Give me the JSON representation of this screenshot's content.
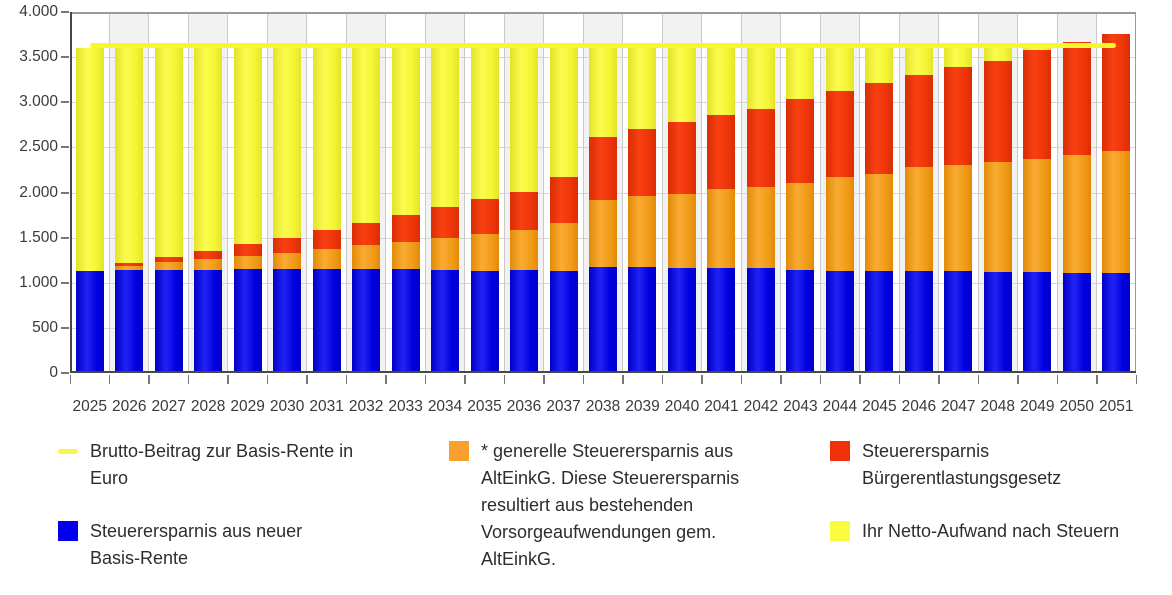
{
  "colors": {
    "blue": "#0000ee",
    "orange": "#f7a02e",
    "red": "#f03008",
    "yellow_bar": "#fbfb3f",
    "yellow_line": "#f7f74a",
    "band": "#f2f2f2",
    "grid": "#d6d6d6",
    "axis_text": "#3a3a3a"
  },
  "y_axis": {
    "tick_labels": [
      "0",
      "500",
      "1.000",
      "1.500",
      "2.000",
      "2.500",
      "3.000",
      "3.500",
      "4.000"
    ],
    "tick_values": [
      0,
      500,
      1000,
      1500,
      2000,
      2500,
      3000,
      3500,
      4000
    ]
  },
  "x_axis": {
    "categories": [
      "2025",
      "2026",
      "2027",
      "2028",
      "2029",
      "2030",
      "2031",
      "2032",
      "2033",
      "2034",
      "2035",
      "2036",
      "2037",
      "2038",
      "2039",
      "2040",
      "2041",
      "2042",
      "2043",
      "2044",
      "2045",
      "2046",
      "2047",
      "2048",
      "2049",
      "2050",
      "2051"
    ]
  },
  "chart_data": {
    "type": "bar",
    "stacked": true,
    "title": "",
    "xlabel": "",
    "ylabel": "",
    "ylim": [
      0,
      4000
    ],
    "grid": true,
    "legend_position": "bottom",
    "categories": [
      2025,
      2026,
      2027,
      2028,
      2029,
      2030,
      2031,
      2032,
      2033,
      2034,
      2035,
      2036,
      2037,
      2038,
      2039,
      2040,
      2041,
      2042,
      2043,
      2044,
      2045,
      2046,
      2047,
      2048,
      2049,
      2050,
      2051
    ],
    "series": [
      {
        "key": "blue",
        "name": "Steuerersparnis aus neuer Basis-Rente",
        "values": [
          1130,
          1140,
          1145,
          1145,
          1150,
          1155,
          1150,
          1150,
          1150,
          1140,
          1135,
          1140,
          1130,
          1175,
          1170,
          1165,
          1165,
          1160,
          1140,
          1135,
          1135,
          1130,
          1130,
          1120,
          1115,
          1105,
          1105
        ]
      },
      {
        "key": "orange",
        "name": "* generelle Steuerersparnis aus AltEinkG. Diese Steuerersparnis resultiert aus bestehenden Vorsorgeaufwendungen gem. AltEinkG.",
        "values": [
          0,
          45,
          85,
          115,
          145,
          170,
          220,
          265,
          305,
          360,
          405,
          445,
          530,
          745,
          790,
          820,
          870,
          905,
          965,
          1035,
          1075,
          1155,
          1180,
          1220,
          1260,
          1315,
          1360
        ]
      },
      {
        "key": "red",
        "name": "Steuerersparnis Bürgerentlastungsgesetz",
        "values": [
          0,
          35,
          55,
          95,
          140,
          175,
          215,
          250,
          295,
          335,
          390,
          425,
          515,
          695,
          740,
          800,
          825,
          865,
          935,
          950,
          1005,
          1020,
          1080,
          1120,
          1200,
          1250,
          1290
        ]
      },
      {
        "key": "yellow",
        "name": "Ihr Netto-Aufwand nach Steuern",
        "values": [
          2470,
          2380,
          2315,
          2245,
          2165,
          2100,
          2015,
          1935,
          1850,
          1765,
          1670,
          1590,
          1425,
          985,
          900,
          815,
          740,
          670,
          560,
          480,
          385,
          295,
          210,
          140,
          25,
          0,
          0
        ]
      }
    ],
    "line_series": {
      "key": "yellow_line",
      "name": "Brutto-Beitrag zur Basis-Rente in Euro",
      "values": [
        3600,
        3600,
        3600,
        3600,
        3600,
        3600,
        3600,
        3600,
        3600,
        3600,
        3600,
        3600,
        3600,
        3600,
        3600,
        3600,
        3600,
        3600,
        3600,
        3600,
        3600,
        3600,
        3600,
        3600,
        3600,
        3600,
        3600
      ]
    }
  },
  "legend": {
    "items": [
      {
        "label": "Brutto-Beitrag zur Basis-Rente in\nEuro",
        "marker": "line",
        "color_key": "yellow_line"
      },
      {
        "label": "Steuerersparnis aus neuer\nBasis-Rente",
        "marker": "square",
        "color_key": "blue"
      },
      {
        "label": "* generelle Steuerersparnis aus\nAltEinkG. Diese Steuerersparnis\nresultiert aus bestehenden\nVorsorgeaufwendungen gem.\nAltEinkG.",
        "marker": "square",
        "color_key": "orange"
      },
      {
        "label": "Steuerersparnis\nBürgerentlastungsgesetz",
        "marker": "square",
        "color_key": "red"
      },
      {
        "label": "Ihr Netto-Aufwand nach Steuern",
        "marker": "square",
        "color_key": "yellow_bar"
      }
    ]
  }
}
